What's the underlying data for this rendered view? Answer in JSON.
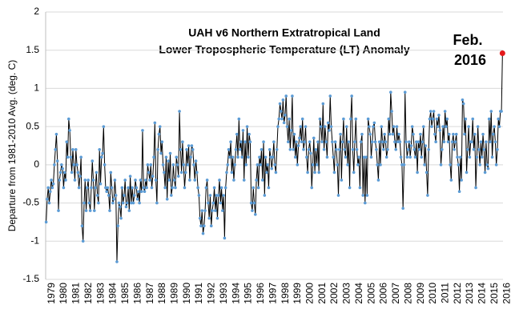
{
  "chart_data": {
    "type": "line",
    "title": [
      "UAH v6  Northern Extratropical Land",
      "Lower Tropospheric Temperature (LT) Anomaly"
    ],
    "y_label": "Departure from 1981-2010 Avg. (deg. C)",
    "annotation": [
      "Feb.",
      "2016"
    ],
    "categories": [
      "1979",
      null,
      null,
      null,
      null,
      null,
      null,
      null,
      null,
      null,
      null,
      null,
      "1980",
      null,
      null,
      null,
      null,
      null,
      null,
      null,
      null,
      null,
      null,
      null,
      "1981",
      null,
      null,
      null,
      null,
      null,
      null,
      null,
      null,
      null,
      null,
      null,
      "1982",
      null,
      null,
      null,
      null,
      null,
      null,
      null,
      null,
      null,
      null,
      null,
      "1983",
      null,
      null,
      null,
      null,
      null,
      null,
      null,
      null,
      null,
      null,
      null,
      "1984",
      null,
      null,
      null,
      null,
      null,
      null,
      null,
      null,
      null,
      null,
      null,
      "1985",
      null,
      null,
      null,
      null,
      null,
      null,
      null,
      null,
      null,
      null,
      null,
      "1986",
      null,
      null,
      null,
      null,
      null,
      null,
      null,
      null,
      null,
      null,
      null,
      "1987",
      null,
      null,
      null,
      null,
      null,
      null,
      null,
      null,
      null,
      null,
      null,
      "1988",
      null,
      null,
      null,
      null,
      null,
      null,
      null,
      null,
      null,
      null,
      null,
      "1989",
      null,
      null,
      null,
      null,
      null,
      null,
      null,
      null,
      null,
      null,
      null,
      "1990",
      null,
      null,
      null,
      null,
      null,
      null,
      null,
      null,
      null,
      null,
      null,
      "1991",
      null,
      null,
      null,
      null,
      null,
      null,
      null,
      null,
      null,
      null,
      null,
      "1992",
      null,
      null,
      null,
      null,
      null,
      null,
      null,
      null,
      null,
      null,
      null,
      "1993",
      null,
      null,
      null,
      null,
      null,
      null,
      null,
      null,
      null,
      null,
      null,
      "1994",
      null,
      null,
      null,
      null,
      null,
      null,
      null,
      null,
      null,
      null,
      null,
      "1995",
      null,
      null,
      null,
      null,
      null,
      null,
      null,
      null,
      null,
      null,
      null,
      "1996",
      null,
      null,
      null,
      null,
      null,
      null,
      null,
      null,
      null,
      null,
      null,
      "1997",
      null,
      null,
      null,
      null,
      null,
      null,
      null,
      null,
      null,
      null,
      null,
      "1998",
      null,
      null,
      null,
      null,
      null,
      null,
      null,
      null,
      null,
      null,
      null,
      "1999",
      null,
      null,
      null,
      null,
      null,
      null,
      null,
      null,
      null,
      null,
      null,
      "2000",
      null,
      null,
      null,
      null,
      null,
      null,
      null,
      null,
      null,
      null,
      null,
      "2001",
      null,
      null,
      null,
      null,
      null,
      null,
      null,
      null,
      null,
      null,
      null,
      "2002",
      null,
      null,
      null,
      null,
      null,
      null,
      null,
      null,
      null,
      null,
      null,
      "2003",
      null,
      null,
      null,
      null,
      null,
      null,
      null,
      null,
      null,
      null,
      null,
      "2004",
      null,
      null,
      null,
      null,
      null,
      null,
      null,
      null,
      null,
      null,
      null,
      "2005",
      null,
      null,
      null,
      null,
      null,
      null,
      null,
      null,
      null,
      null,
      null,
      "2006",
      null,
      null,
      null,
      null,
      null,
      null,
      null,
      null,
      null,
      null,
      null,
      "2007",
      null,
      null,
      null,
      null,
      null,
      null,
      null,
      null,
      null,
      null,
      null,
      "2008",
      null,
      null,
      null,
      null,
      null,
      null,
      null,
      null,
      null,
      null,
      null,
      "2009",
      null,
      null,
      null,
      null,
      null,
      null,
      null,
      null,
      null,
      null,
      null,
      "2010",
      null,
      null,
      null,
      null,
      null,
      null,
      null,
      null,
      null,
      null,
      null,
      "2011",
      null,
      null,
      null,
      null,
      null,
      null,
      null,
      null,
      null,
      null,
      null,
      "2012",
      null,
      null,
      null,
      null,
      null,
      null,
      null,
      null,
      null,
      null,
      null,
      "2013",
      null,
      null,
      null,
      null,
      null,
      null,
      null,
      null,
      null,
      null,
      null,
      "2014",
      null,
      null,
      null,
      null,
      null,
      null,
      null,
      null,
      null,
      null,
      null,
      "2015",
      null,
      null,
      null,
      null,
      null,
      null,
      null,
      null,
      null,
      null,
      null,
      "2016",
      null
    ],
    "values": [
      -0.75,
      -0.45,
      -0.3,
      -0.5,
      -0.35,
      -0.2,
      -0.3,
      -0.25,
      0.0,
      0.2,
      0.4,
      0.05,
      -0.6,
      -0.2,
      -0.1,
      0.0,
      -0.05,
      -0.3,
      -0.1,
      -0.2,
      0.3,
      0.1,
      0.6,
      0.45,
      0.1,
      -0.1,
      0.2,
      0.0,
      -0.2,
      0.2,
      0.0,
      -0.1,
      -0.3,
      -0.15,
      0.1,
      -0.8,
      -1.0,
      -0.5,
      -0.2,
      -0.6,
      -0.3,
      -0.2,
      -0.5,
      -0.6,
      -0.3,
      0.05,
      -0.2,
      -0.6,
      -0.3,
      -0.1,
      -0.4,
      -0.5,
      0.2,
      -0.25,
      0.1,
      0.15,
      0.5,
      0.0,
      -0.3,
      -0.35,
      -0.3,
      -0.4,
      -0.6,
      -0.1,
      -0.3,
      -0.5,
      -0.45,
      -0.2,
      -0.4,
      -1.27,
      -0.8,
      -0.5,
      -0.55,
      -0.7,
      -0.3,
      -0.5,
      -0.4,
      -0.2,
      -0.55,
      -0.5,
      -0.3,
      -0.6,
      -0.15,
      -0.5,
      -0.3,
      -0.5,
      -0.4,
      -0.2,
      -0.3,
      -0.45,
      -0.35,
      -0.5,
      -0.2,
      -0.35,
      0.45,
      -0.3,
      -0.35,
      -0.2,
      -0.3,
      0.0,
      -0.1,
      -0.2,
      0.0,
      -0.3,
      -0.15,
      0.1,
      0.55,
      -0.2,
      -0.5,
      0.2,
      0.4,
      0.5,
      0.15,
      0.3,
      0.0,
      -0.1,
      -0.3,
      0.1,
      -0.45,
      0.05,
      -0.2,
      0.15,
      -0.4,
      -0.3,
      0.0,
      -0.2,
      -0.3,
      0.1,
      0.0,
      -0.15,
      0.7,
      0.2,
      -0.1,
      0.3,
      0.0,
      -0.3,
      -0.1,
      0.2,
      0.0,
      0.25,
      -0.2,
      0.1,
      0.25,
      0.2,
      0.0,
      -0.2,
      0.05,
      -0.1,
      -0.3,
      -0.4,
      -0.7,
      -0.8,
      -0.6,
      -0.9,
      -0.8,
      -0.6,
      -0.3,
      -0.2,
      -0.5,
      -0.7,
      -0.4,
      -0.8,
      -0.6,
      -0.5,
      -0.3,
      -0.6,
      -0.4,
      -0.7,
      -0.4,
      -0.2,
      -0.5,
      -0.3,
      -0.6,
      -0.4,
      -0.96,
      -0.3,
      -0.1,
      0.0,
      0.2,
      0.1,
      0.3,
      -0.1,
      0.1,
      -0.2,
      0.0,
      0.2,
      0.4,
      0.1,
      0.6,
      0.2,
      0.3,
      0.1,
      0.45,
      -0.2,
      0.3,
      0.0,
      0.5,
      0.1,
      0.4,
      0.3,
      -0.5,
      -0.6,
      -0.3,
      -0.5,
      -0.65,
      -0.2,
      0.0,
      -0.3,
      0.1,
      0.0,
      0.2,
      -0.2,
      0.3,
      -0.4,
      0.1,
      -0.1,
      0.0,
      -0.3,
      0.2,
      0.1,
      -0.05,
      0.1,
      0.3,
      0.0,
      -0.1,
      0.2,
      0.5,
      0.6,
      0.8,
      0.7,
      0.6,
      0.85,
      0.55,
      0.65,
      0.9,
      0.5,
      0.3,
      0.6,
      0.2,
      0.45,
      0.9,
      0.2,
      0.4,
      0.1,
      0.3,
      0.0,
      0.25,
      0.35,
      0.5,
      0.3,
      0.6,
      0.2,
      0.3,
      0.5,
      0.1,
      -0.1,
      0.2,
      0.3,
      0.15,
      -0.3,
      0.0,
      0.35,
      -0.1,
      0.2,
      0.0,
      0.3,
      -0.1,
      0.6,
      0.5,
      0.3,
      0.8,
      0.2,
      0.5,
      0.3,
      0.1,
      0.55,
      0.45,
      0.9,
      0.5,
      0.3,
      0.1,
      -0.1,
      0.3,
      0.2,
      0.0,
      -0.4,
      0.2,
      0.4,
      -0.2,
      0.3,
      0.6,
      0.2,
      0.1,
      0.5,
      0.0,
      0.3,
      -0.3,
      0.6,
      0.9,
      0.2,
      -0.1,
      0.3,
      0.6,
      0.2,
      0.0,
      0.1,
      -0.3,
      0.3,
      0.4,
      -0.4,
      0.1,
      -0.5,
      0.1,
      -0.4,
      0.6,
      0.5,
      0.4,
      0.1,
      0.3,
      0.5,
      0.55,
      0.3,
      0.2,
      0.0,
      -0.2,
      0.3,
      0.0,
      0.5,
      0.3,
      0.2,
      0.4,
      0.3,
      0.1,
      0.2,
      0.6,
      0.4,
      0.95,
      0.7,
      0.4,
      0.5,
      0.3,
      0.2,
      0.5,
      0.3,
      0.4,
      0.3,
      0.1,
      0.0,
      -0.57,
      0.0,
      0.95,
      0.3,
      0.1,
      0.2,
      0.3,
      0.1,
      0.25,
      0.5,
      0.4,
      0.2,
      0.1,
      0.3,
      -0.1,
      0.3,
      0.2,
      0.4,
      0.1,
      0.3,
      0.5,
      0.0,
      0.25,
      -0.1,
      -0.4,
      0.2,
      0.6,
      0.7,
      0.5,
      0.6,
      0.7,
      0.4,
      0.3,
      0.6,
      0.5,
      0.65,
      0.45,
      0.0,
      0.2,
      0.5,
      0.3,
      0.7,
      0.5,
      0.6,
      0.3,
      0.4,
      0.0,
      -0.2,
      0.3,
      0.4,
      0.2,
      0.3,
      0.4,
      0.1,
      0.0,
      -0.35,
      0.1,
      -0.2,
      0.85,
      0.8,
      0.4,
      0.6,
      -0.1,
      0.2,
      0.5,
      0.1,
      0.3,
      0.3,
      0.6,
      0.2,
      0.4,
      -0.3,
      0.1,
      0.5,
      0.2,
      0.0,
      0.3,
      0.1,
      0.4,
      0.2,
      -0.1,
      0.3,
      0.0,
      -0.05,
      0.6,
      0.3,
      0.7,
      0.1,
      0.4,
      0.5,
      0.3,
      0.0,
      0.2,
      0.6,
      0.5,
      0.7,
      0.7,
      1.46
    ],
    "color": "#000000",
    "marker_color": "#5b9bd5",
    "highlight_color": "#e41a1c",
    "ylim": [
      -1.5,
      2
    ],
    "yticks": [
      -1.5,
      -1,
      -0.5,
      0,
      0.5,
      1,
      1.5,
      2
    ],
    "grid": true
  }
}
